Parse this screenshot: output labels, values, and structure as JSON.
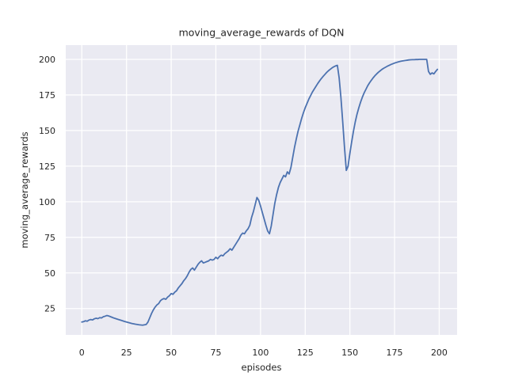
{
  "figure": {
    "background": "#ffffff"
  },
  "chart_data": {
    "type": "line",
    "title": "moving_average_rewards of DQN",
    "xlabel": "episodes",
    "ylabel": "moving_average_rewards",
    "xlim": [
      -9,
      210
    ],
    "ylim": [
      6.5,
      210
    ],
    "xticks": [
      0,
      25,
      50,
      75,
      100,
      125,
      150,
      175,
      200
    ],
    "yticks": [
      25,
      50,
      75,
      100,
      125,
      150,
      175,
      200
    ],
    "grid": true,
    "legend_position": "none",
    "style": {
      "plot_bg": "#eaeaf2",
      "grid_color": "#ffffff",
      "line_color": "#4c72b0",
      "text_color": "#262626",
      "figure_bg": "#ffffff",
      "line_width": 1.8
    },
    "series": [
      {
        "name": "moving_average_rewards",
        "x": [
          0,
          1,
          2,
          3,
          4,
          5,
          6,
          7,
          8,
          9,
          10,
          11,
          12,
          13,
          14,
          15,
          16,
          17,
          18,
          20,
          22,
          24,
          26,
          28,
          30,
          32,
          34,
          36,
          37,
          38,
          39,
          40,
          41,
          42,
          43,
          44,
          45,
          46,
          47,
          48,
          49,
          50,
          51,
          52,
          53,
          54,
          55,
          56,
          57,
          58,
          59,
          60,
          61,
          62,
          63,
          64,
          65,
          66,
          67,
          68,
          69,
          70,
          71,
          72,
          73,
          74,
          75,
          76,
          77,
          78,
          79,
          80,
          81,
          82,
          83,
          84,
          85,
          86,
          87,
          88,
          89,
          90,
          91,
          92,
          93,
          94,
          95,
          96,
          97,
          98,
          99,
          100,
          101,
          102,
          103,
          104,
          105,
          106,
          107,
          108,
          109,
          110,
          111,
          112,
          113,
          114,
          115,
          116,
          117,
          118,
          119,
          120,
          121,
          122,
          123,
          124,
          125,
          126,
          127,
          128,
          129,
          130,
          131,
          132,
          133,
          134,
          135,
          136,
          137,
          138,
          139,
          140,
          141,
          142,
          143,
          144,
          145,
          146,
          147,
          148,
          149,
          150,
          151,
          152,
          153,
          154,
          155,
          156,
          157,
          158,
          159,
          160,
          161,
          162,
          163,
          164,
          165,
          166,
          167,
          168,
          169,
          170,
          171,
          172,
          173,
          174,
          175,
          176,
          177,
          178,
          179,
          180,
          181,
          182,
          183,
          184,
          185,
          186,
          187,
          188,
          189,
          190,
          191,
          192,
          193,
          194,
          195,
          196,
          197,
          198,
          199
        ],
        "y": [
          15.5,
          15.8,
          16.4,
          16.1,
          16.9,
          17.3,
          17.0,
          17.8,
          18.2,
          17.9,
          18.6,
          18.4,
          19.2,
          19.6,
          20.1,
          19.8,
          19.3,
          18.8,
          18.3,
          17.5,
          16.7,
          15.9,
          15.2,
          14.5,
          14.0,
          13.6,
          13.3,
          13.8,
          15.5,
          18.5,
          21.5,
          24.0,
          26.0,
          27.5,
          28.5,
          30.5,
          31.5,
          32.0,
          31.5,
          33.0,
          34.0,
          35.5,
          35.0,
          36.5,
          37.5,
          39.5,
          41.0,
          42.5,
          44.5,
          46.0,
          48.0,
          50.5,
          52.5,
          53.5,
          52.0,
          54.0,
          56.0,
          57.5,
          58.5,
          57.0,
          57.5,
          58.0,
          58.5,
          59.5,
          59.0,
          59.5,
          61.0,
          60.0,
          61.5,
          62.5,
          62.0,
          63.5,
          64.5,
          65.5,
          67.0,
          66.0,
          68.0,
          70.0,
          72.0,
          74.0,
          76.5,
          78.0,
          77.5,
          79.5,
          81.0,
          83.5,
          89.0,
          93.0,
          98.0,
          103.0,
          101.0,
          97.0,
          92.5,
          88.0,
          83.5,
          79.5,
          77.5,
          83.0,
          91.0,
          99.0,
          105.0,
          110.0,
          113.5,
          116.0,
          118.5,
          117.5,
          121.0,
          119.5,
          124.0,
          131.0,
          138.0,
          144.0,
          149.5,
          154.0,
          158.5,
          162.5,
          166.0,
          169.0,
          172.0,
          174.5,
          177.0,
          179.0,
          181.0,
          183.0,
          184.8,
          186.5,
          188.0,
          189.4,
          190.8,
          192.0,
          193.0,
          194.0,
          194.8,
          195.4,
          195.8,
          187.0,
          173.0,
          156.0,
          138.0,
          122.0,
          125.0,
          134.0,
          142.0,
          149.5,
          156.0,
          161.5,
          166.0,
          170.0,
          173.5,
          176.5,
          179.0,
          181.5,
          183.5,
          185.3,
          187.0,
          188.5,
          189.8,
          191.0,
          192.0,
          193.0,
          193.8,
          194.5,
          195.2,
          195.8,
          196.4,
          196.9,
          197.4,
          197.8,
          198.2,
          198.5,
          198.8,
          199.0,
          199.2,
          199.4,
          199.6,
          199.7,
          199.8,
          199.8,
          199.9,
          199.9,
          200.0,
          200.0,
          200.0,
          200.0,
          200.0,
          191.5,
          189.5,
          190.5,
          189.8,
          191.5,
          193.0
        ]
      }
    ]
  }
}
